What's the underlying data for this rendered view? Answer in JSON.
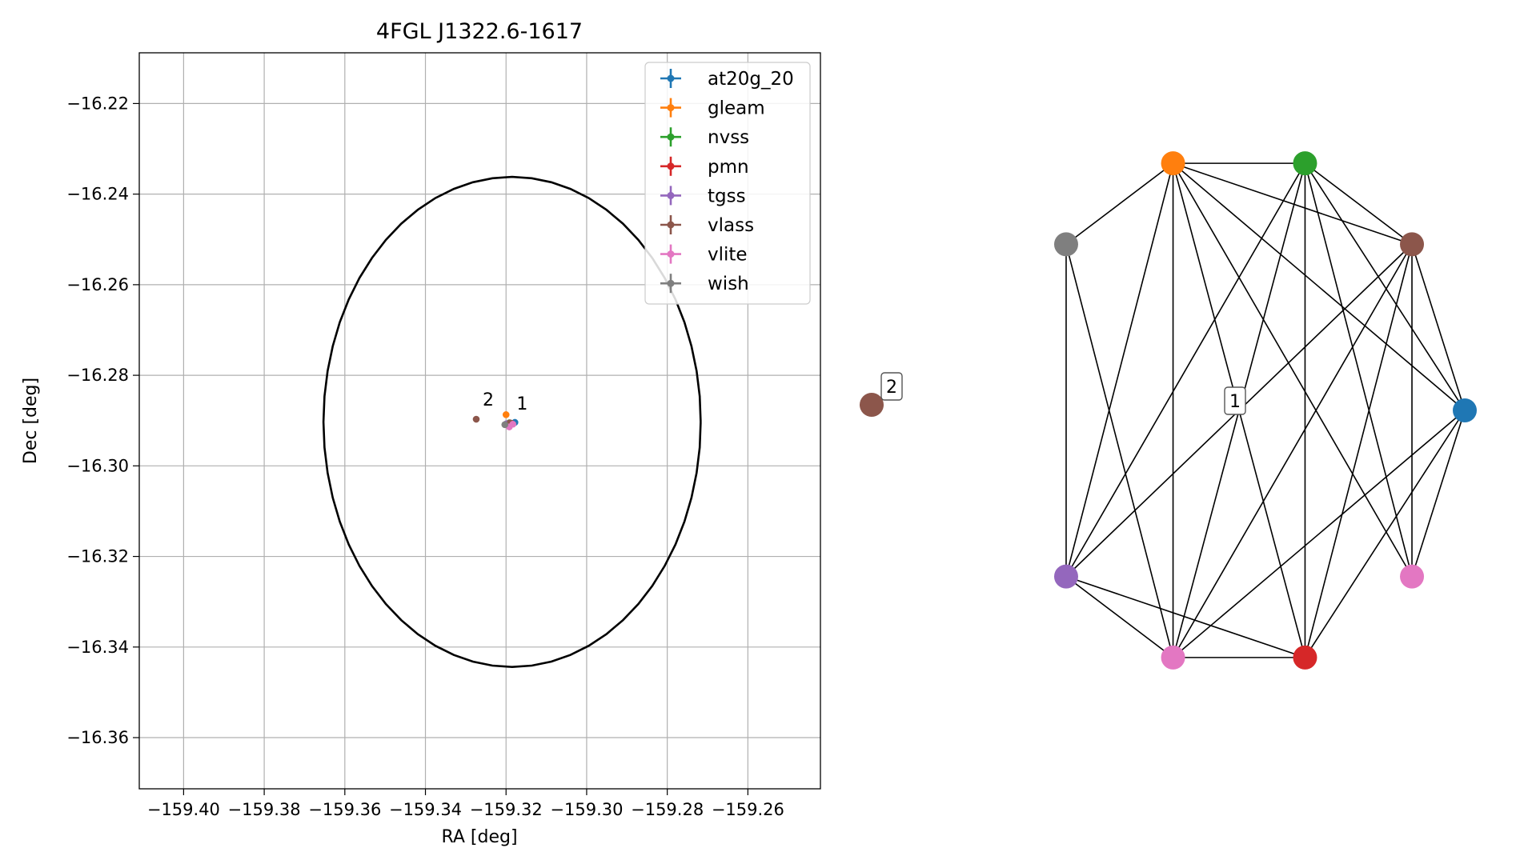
{
  "chart_data": [
    {
      "type": "scatter",
      "title": "4FGL J1322.6-1617",
      "xlabel": "RA [deg]",
      "ylabel": "Dec [deg]",
      "xlim": [
        -159.411,
        -159.242
      ],
      "ylim": [
        -16.3713,
        -16.2088
      ],
      "grid": true,
      "legend_position": "top-right",
      "x_ticks": [
        {
          "value": -159.4,
          "label": "−159.40"
        },
        {
          "value": -159.38,
          "label": "−159.38"
        },
        {
          "value": -159.36,
          "label": "−159.36"
        },
        {
          "value": -159.34,
          "label": "−159.34"
        },
        {
          "value": -159.32,
          "label": "−159.32"
        },
        {
          "value": -159.3,
          "label": "−159.30"
        },
        {
          "value": -159.28,
          "label": "−159.28"
        },
        {
          "value": -159.26,
          "label": "−159.26"
        }
      ],
      "y_ticks": [
        {
          "value": -16.22,
          "label": "−16.22"
        },
        {
          "value": -16.24,
          "label": "−16.24"
        },
        {
          "value": -16.26,
          "label": "−16.26"
        },
        {
          "value": -16.28,
          "label": "−16.28"
        },
        {
          "value": -16.3,
          "label": "−16.30"
        },
        {
          "value": -16.32,
          "label": "−16.32"
        },
        {
          "value": -16.34,
          "label": "−16.34"
        },
        {
          "value": -16.36,
          "label": "−16.36"
        }
      ],
      "ellipse": {
        "center_ra": -159.3185,
        "center_dec": -16.2903,
        "semi_ra": 0.0468,
        "semi_dec": 0.0541
      },
      "series": [
        {
          "name": "at20g_20",
          "color": "#1f77b4",
          "points": [
            {
              "ra": -159.3178,
              "dec": -16.2904
            }
          ]
        },
        {
          "name": "gleam",
          "color": "#ff7f0e",
          "points": [
            {
              "ra": -159.32,
              "dec": -16.2887
            }
          ]
        },
        {
          "name": "nvss",
          "color": "#2ca02c",
          "points": [
            {
              "ra": -159.3192,
              "dec": -16.2905
            }
          ]
        },
        {
          "name": "pmn",
          "color": "#d62728",
          "points": [
            {
              "ra": -159.3187,
              "dec": -16.2906
            }
          ]
        },
        {
          "name": "tgss",
          "color": "#9467bd",
          "points": [
            {
              "ra": -159.3199,
              "dec": -16.2907
            }
          ]
        },
        {
          "name": "vlass",
          "color": "#8c564b",
          "points": [
            {
              "ra": -159.3274,
              "dec": -16.2897
            },
            {
              "ra": -159.319,
              "dec": -16.2905
            }
          ]
        },
        {
          "name": "vlite",
          "color": "#e377c2",
          "points": [
            {
              "ra": -159.3192,
              "dec": -16.2914
            },
            {
              "ra": -159.3183,
              "dec": -16.2908
            }
          ]
        },
        {
          "name": "wish",
          "color": "#7f7f7f",
          "points": [
            {
              "ra": -159.3203,
              "dec": -16.2909
            }
          ]
        }
      ],
      "annotations": [
        {
          "text": "1",
          "ra": -159.3174,
          "dec": -16.2876
        },
        {
          "text": "2",
          "ra": -159.3258,
          "dec": -16.2867
        }
      ]
    },
    {
      "type": "network",
      "nodes": [
        {
          "id": "gleam",
          "color": "#ff7f0e",
          "angle": 107
        },
        {
          "id": "nvss",
          "color": "#2ca02c",
          "angle": 73
        },
        {
          "id": "vlass",
          "color": "#8c564b",
          "angle": 40
        },
        {
          "id": "at20g_20",
          "color": "#1f77b4",
          "angle": 0
        },
        {
          "id": "vlite_a",
          "color": "#e377c2",
          "angle": -40
        },
        {
          "id": "pmn",
          "color": "#d62728",
          "angle": -73
        },
        {
          "id": "vlite_b",
          "color": "#e377c2",
          "angle": -107
        },
        {
          "id": "tgss",
          "color": "#9467bd",
          "angle": -140
        },
        {
          "id": "wish",
          "color": "#7f7f7f",
          "angle": 140
        },
        {
          "id": "vlass_2",
          "color": "#8c564b",
          "angle": null
        }
      ],
      "edges": [
        [
          "gleam",
          "nvss"
        ],
        [
          "gleam",
          "vlass"
        ],
        [
          "gleam",
          "at20g_20"
        ],
        [
          "gleam",
          "vlite_a"
        ],
        [
          "gleam",
          "pmn"
        ],
        [
          "gleam",
          "vlite_b"
        ],
        [
          "gleam",
          "tgss"
        ],
        [
          "gleam",
          "wish"
        ],
        [
          "nvss",
          "vlass"
        ],
        [
          "nvss",
          "at20g_20"
        ],
        [
          "nvss",
          "vlite_a"
        ],
        [
          "nvss",
          "pmn"
        ],
        [
          "nvss",
          "vlite_b"
        ],
        [
          "nvss",
          "tgss"
        ],
        [
          "vlass",
          "at20g_20"
        ],
        [
          "vlass",
          "vlite_a"
        ],
        [
          "vlass",
          "pmn"
        ],
        [
          "vlass",
          "vlite_b"
        ],
        [
          "vlass",
          "tgss"
        ],
        [
          "at20g_20",
          "vlite_a"
        ],
        [
          "at20g_20",
          "pmn"
        ],
        [
          "at20g_20",
          "vlite_b"
        ],
        [
          "pmn",
          "vlite_b"
        ],
        [
          "pmn",
          "tgss"
        ],
        [
          "vlite_b",
          "tgss"
        ],
        [
          "vlite_b",
          "wish"
        ],
        [
          "tgss",
          "wish"
        ]
      ],
      "labels": [
        {
          "text": "1",
          "group": "component"
        },
        {
          "text": "2",
          "group": "isolated"
        }
      ]
    }
  ]
}
